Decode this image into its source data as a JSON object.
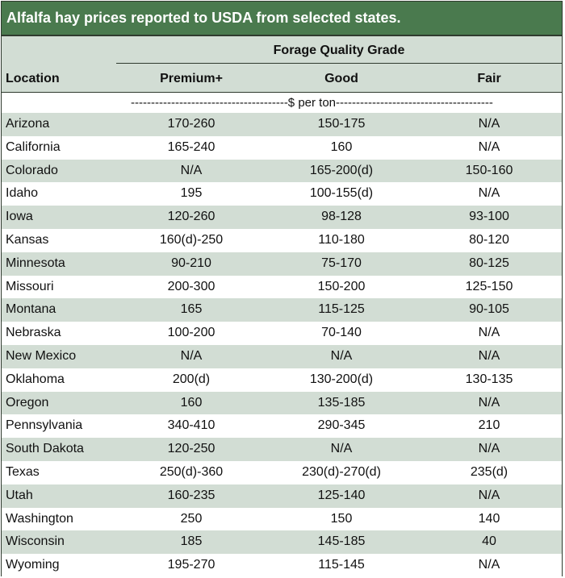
{
  "title": "Alfalfa hay prices reported to USDA from selected states.",
  "header": {
    "group_label": "Forage Quality Grade",
    "location_label": "Location",
    "col_premium": "Premium+",
    "col_good": "Good",
    "col_fair": "Fair"
  },
  "unit_label": "---------------------------------------$ per ton---------------------------------------",
  "colors": {
    "title_bg": "#4a7a4e",
    "shade": "#d2ddd4"
  },
  "rows": [
    {
      "location": "Arizona",
      "premium": "170-260",
      "good": "150-175",
      "fair": "N/A"
    },
    {
      "location": "California",
      "premium": "165-240",
      "good": "160",
      "fair": "N/A"
    },
    {
      "location": "Colorado",
      "premium": "N/A",
      "good": "165-200(d)",
      "fair": "150-160"
    },
    {
      "location": "Idaho",
      "premium": "195",
      "good": "100-155(d)",
      "fair": "N/A"
    },
    {
      "location": "Iowa",
      "premium": "120-260",
      "good": "98-128",
      "fair": "93-100"
    },
    {
      "location": "Kansas",
      "premium": "160(d)-250",
      "good": "110-180",
      "fair": "80-120"
    },
    {
      "location": "Minnesota",
      "premium": "90-210",
      "good": "75-170",
      "fair": "80-125"
    },
    {
      "location": "Missouri",
      "premium": "200-300",
      "good": "150-200",
      "fair": "125-150"
    },
    {
      "location": "Montana",
      "premium": "165",
      "good": "115-125",
      "fair": "90-105"
    },
    {
      "location": "Nebraska",
      "premium": "100-200",
      "good": "70-140",
      "fair": "N/A"
    },
    {
      "location": "New Mexico",
      "premium": "N/A",
      "good": "N/A",
      "fair": "N/A"
    },
    {
      "location": "Oklahoma",
      "premium": "200(d)",
      "good": "130-200(d)",
      "fair": "130-135"
    },
    {
      "location": "Oregon",
      "premium": "160",
      "good": "135-185",
      "fair": "N/A"
    },
    {
      "location": "Pennsylvania",
      "premium": "340-410",
      "good": "290-345",
      "fair": "210"
    },
    {
      "location": "South Dakota",
      "premium": "120-250",
      "good": "N/A",
      "fair": "N/A"
    },
    {
      "location": "Texas",
      "premium": "250(d)-360",
      "good": "230(d)-270(d)",
      "fair": "235(d)"
    },
    {
      "location": "Utah",
      "premium": "160-235",
      "good": "125-140",
      "fair": "N/A"
    },
    {
      "location": "Washington",
      "premium": "250",
      "good": "150",
      "fair": "140"
    },
    {
      "location": "Wisconsin",
      "premium": "185",
      "good": "145-185",
      "fair": "40"
    },
    {
      "location": "Wyoming",
      "premium": "195-270",
      "good": "115-145",
      "fair": "N/A"
    }
  ]
}
